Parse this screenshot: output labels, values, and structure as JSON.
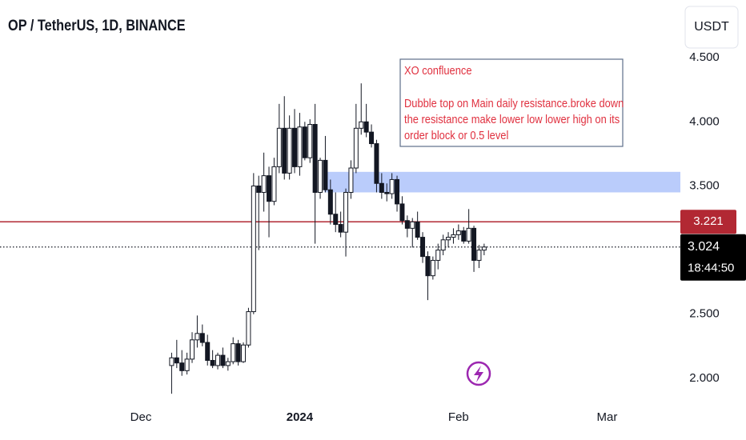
{
  "chart_data": {
    "type": "candlestick",
    "title": "OP / TetherUS, 1D, BINANCE",
    "currency_button": "USDT",
    "x": [
      6,
      7,
      8,
      9,
      10,
      11,
      12,
      13,
      14,
      15,
      16,
      17,
      18,
      19,
      20,
      21,
      22,
      23,
      24,
      25,
      26,
      27,
      28,
      29,
      30,
      31,
      32,
      33,
      34,
      35,
      36,
      37,
      38,
      39,
      40,
      41,
      42,
      43,
      44,
      45,
      46,
      47,
      48,
      49,
      50,
      51,
      52,
      53,
      54,
      55,
      56,
      57,
      58,
      59,
      60,
      61,
      62,
      63,
      64,
      65,
      66,
      67
    ],
    "open": [
      2.1,
      2.16,
      2.12,
      2.06,
      2.15,
      2.3,
      2.35,
      2.28,
      2.14,
      2.1,
      2.18,
      2.1,
      2.13,
      2.27,
      2.13,
      2.26,
      2.52,
      3.5,
      3.45,
      3.58,
      3.38,
      3.65,
      3.95,
      3.6,
      3.95,
      3.65,
      3.96,
      3.72,
      3.98,
      3.45,
      3.7,
      3.47,
      3.28,
      3.2,
      3.14,
      3.45,
      3.64,
      3.95,
      4.0,
      3.92,
      3.83,
      3.52,
      3.45,
      3.44,
      3.55,
      3.36,
      3.23,
      3.17,
      3.22,
      3.1,
      2.95,
      2.8,
      2.92,
      3.0,
      3.08,
      3.1,
      3.12,
      3.15,
      3.07,
      3.17,
      2.92,
      3.0
    ],
    "high": [
      2.2,
      2.3,
      2.22,
      2.2,
      2.36,
      2.49,
      2.42,
      2.34,
      2.22,
      2.2,
      2.24,
      2.16,
      2.32,
      2.3,
      2.28,
      2.55,
      3.6,
      3.58,
      3.76,
      3.65,
      3.72,
      4.14,
      4.2,
      4.05,
      4.1,
      4.07,
      4.0,
      4.02,
      4.14,
      3.72,
      3.89,
      3.55,
      3.45,
      3.3,
      3.48,
      3.7,
      4.14,
      4.3,
      4.14,
      3.98,
      3.86,
      3.6,
      3.52,
      3.6,
      3.58,
      3.42,
      3.27,
      3.25,
      3.3,
      3.14,
      2.99,
      2.95,
      3.05,
      3.12,
      3.14,
      3.17,
      3.2,
      3.18,
      3.32,
      3.19,
      3.04,
      3.05
    ],
    "low": [
      1.88,
      2.08,
      2.02,
      2.03,
      2.12,
      2.24,
      2.25,
      2.1,
      2.08,
      2.07,
      2.08,
      2.06,
      2.11,
      2.1,
      2.12,
      2.24,
      2.5,
      3.0,
      3.3,
      3.1,
      3.35,
      3.6,
      3.55,
      3.55,
      3.6,
      3.58,
      3.7,
      3.68,
      3.05,
      3.4,
      3.45,
      3.2,
      3.14,
      3.1,
      2.95,
      3.4,
      3.6,
      3.9,
      3.88,
      3.8,
      3.45,
      3.4,
      3.38,
      3.4,
      3.3,
      3.2,
      3.1,
      3.02,
      3.08,
      2.9,
      2.61,
      2.77,
      2.85,
      2.96,
      3.02,
      3.05,
      3.08,
      3.05,
      3.05,
      2.83,
      2.86,
      2.96
    ],
    "close": [
      2.16,
      2.12,
      2.06,
      2.15,
      2.3,
      2.35,
      2.28,
      2.14,
      2.1,
      2.18,
      2.1,
      2.13,
      2.27,
      2.13,
      2.26,
      2.52,
      3.5,
      3.45,
      3.58,
      3.38,
      3.65,
      3.95,
      3.6,
      3.95,
      3.65,
      3.96,
      3.72,
      3.98,
      3.45,
      3.7,
      3.47,
      3.28,
      3.2,
      3.14,
      3.45,
      3.64,
      3.95,
      4.0,
      3.92,
      3.83,
      3.52,
      3.45,
      3.44,
      3.55,
      3.36,
      3.23,
      3.17,
      3.22,
      3.1,
      2.95,
      2.8,
      2.92,
      3.0,
      3.08,
      3.1,
      3.12,
      3.15,
      3.07,
      3.17,
      2.92,
      3.0,
      3.024
    ],
    "up_color": "#ffffff",
    "down_color": "#131722",
    "xlim": [
      -27.5,
      105.3
    ],
    "xticks": [
      {
        "value": 0,
        "label": "Dec"
      },
      {
        "value": 31,
        "label": "2024"
      },
      {
        "value": 62,
        "label": "Feb"
      },
      {
        "value": 91,
        "label": "Mar"
      }
    ],
    "ylim": [
      1.8,
      4.95
    ],
    "yticks": [
      {
        "value": 2,
        "label": "2.000"
      },
      {
        "value": 2.5,
        "label": "2.500"
      },
      {
        "value": 3.5,
        "label": "3.500"
      },
      {
        "value": 4,
        "label": "4.000"
      },
      {
        "value": 4.5,
        "label": "4.500"
      }
    ],
    "horizontal_line": {
      "value": 3.221,
      "color": "#b22833"
    },
    "last_price": {
      "value": 3.024,
      "countdown": "18:44:50"
    },
    "zone": {
      "x_start": 35.8,
      "high": 3.61,
      "low": 3.45,
      "color": "#b3c6fb"
    },
    "annotation": {
      "heading": "XO confluence",
      "lines": [
        "Dubble top on Main daily resistance.broke down",
        "the resistance make lower low lower high on its",
        "order block or 0.5 level"
      ],
      "color": "#e0303f"
    }
  }
}
